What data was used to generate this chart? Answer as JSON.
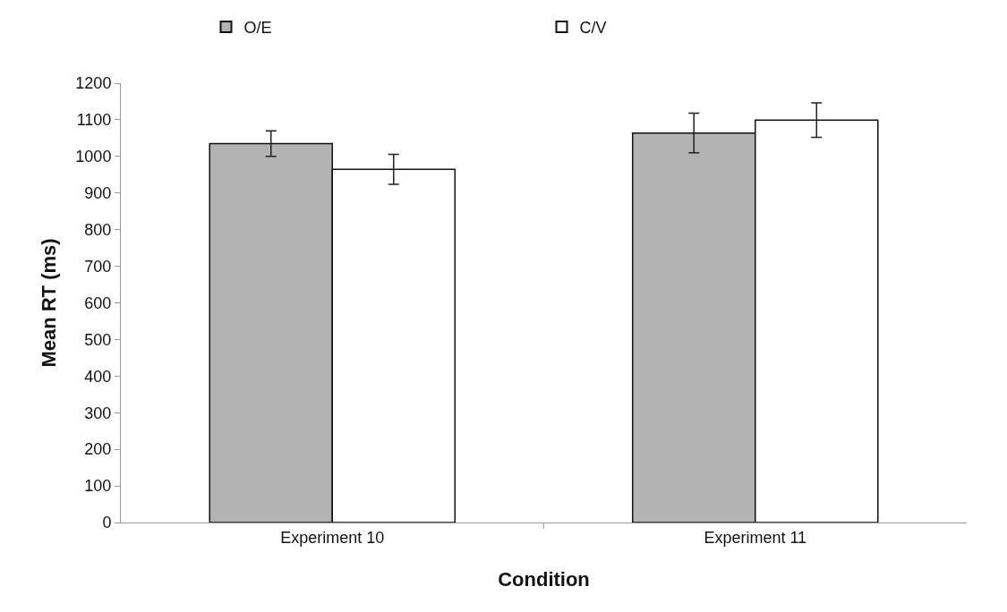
{
  "chart_data": {
    "type": "bar",
    "xlabel": "Condition",
    "ylabel": "Mean RT (ms)",
    "categories": [
      "Experiment 10",
      "Experiment 11"
    ],
    "series": [
      {
        "name": "O/E",
        "color": "#b3b3b3",
        "values": [
          1035,
          1064
        ],
        "errors": [
          35,
          54
        ]
      },
      {
        "name": "C/V",
        "color": "#ffffff",
        "values": [
          965,
          1099
        ],
        "errors": [
          41,
          47
        ]
      }
    ],
    "ylim": [
      0,
      1200
    ],
    "yticks": [
      0,
      100,
      200,
      300,
      400,
      500,
      600,
      700,
      800,
      900,
      1000,
      1100,
      1200
    ],
    "legend": "top"
  }
}
